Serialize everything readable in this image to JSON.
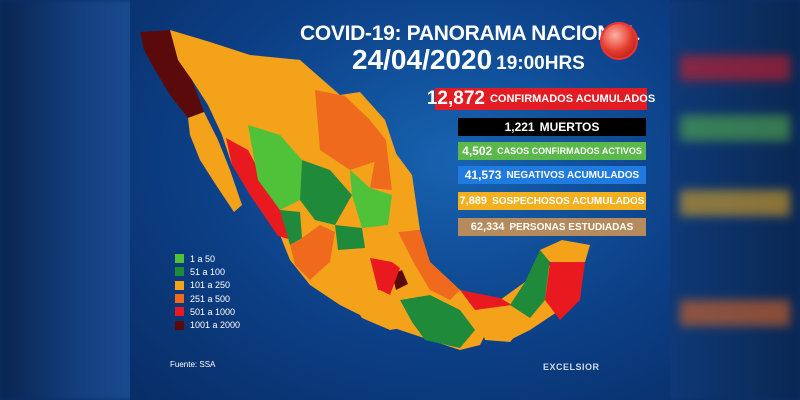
{
  "header": {
    "title": "COVID-19: PANORAMA NACIONAL",
    "date": "24/04/2020",
    "time": "19:00HRS",
    "icon": "virus-globe-icon"
  },
  "stats": [
    {
      "value": "12,872",
      "label": "CONFIRMADOS ACUMULADOS",
      "color": "#e31b23"
    },
    {
      "value": "1,221",
      "label": "MUERTOS",
      "color": "#000000"
    },
    {
      "value": "4,502",
      "label": "CASOS CONFIRMADOS ACTIVOS",
      "color": "#5bb84a"
    },
    {
      "value": "41,573",
      "label": "NEGATIVOS ACUMULADOS",
      "color": "#1f7be0"
    },
    {
      "value": "7,889",
      "label": "SOSPECHOSOS ACUMULADOS",
      "color": "#f2b01e"
    },
    {
      "value": "62,334",
      "label": "PERSONAS ESTUDIADAS",
      "color": "#b58a5c"
    }
  ],
  "legend": [
    {
      "label": "1 a 50",
      "color": "#4fc23a"
    },
    {
      "label": "51 a 100",
      "color": "#1f8a3a"
    },
    {
      "label": "101 a 250",
      "color": "#f5a21b"
    },
    {
      "label": "251 a 500",
      "color": "#f06a1e"
    },
    {
      "label": "501 a 1000",
      "color": "#e8191f"
    },
    {
      "label": "1001 a 2000",
      "color": "#5a0a0a"
    }
  ],
  "source": "Fuente: SSA",
  "brand": "EXCELSIOR"
}
